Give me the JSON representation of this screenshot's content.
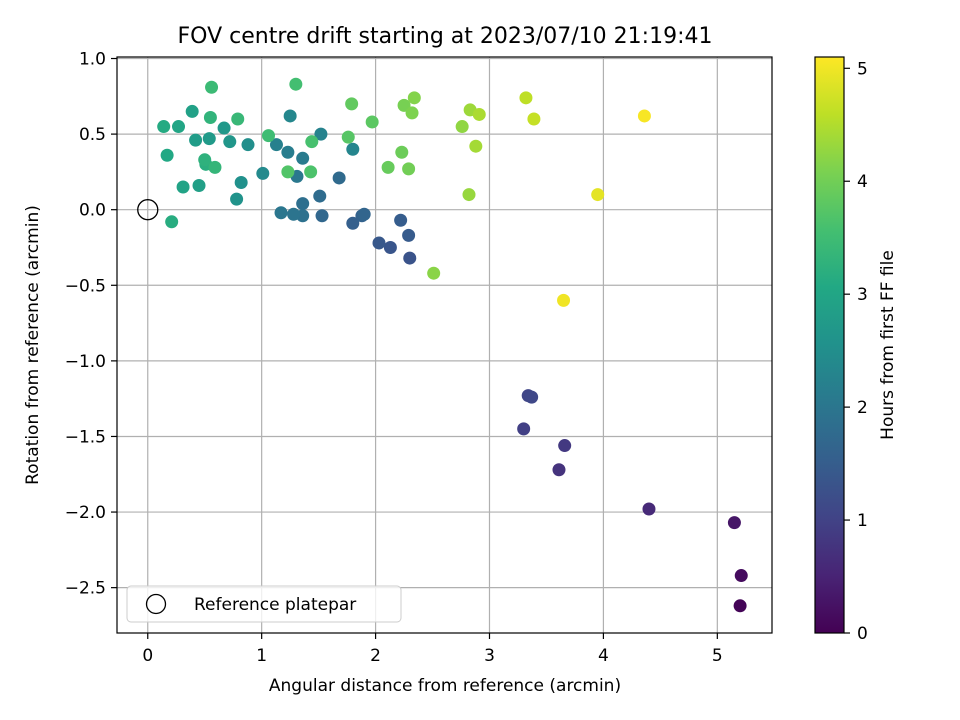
{
  "chart_data": {
    "type": "scatter",
    "title": "FOV centre drift starting at 2023/07/10 21:19:41",
    "xlabel": "Angular distance from reference (arcmin)",
    "ylabel": "Rotation from reference (arcmin)",
    "xlim": [
      -0.27,
      5.48
    ],
    "ylim": [
      -2.8,
      1.01
    ],
    "xticks": [
      0,
      1,
      2,
      3,
      4,
      5
    ],
    "xtick_labels": [
      "0",
      "1",
      "2",
      "3",
      "4",
      "5"
    ],
    "yticks": [
      1.0,
      0.5,
      0.0,
      -0.5,
      -1.0,
      -1.5,
      -2.0,
      -2.5
    ],
    "ytick_labels": [
      "1.0",
      "0.5",
      "0.0",
      "−0.5",
      "−1.0",
      "−1.5",
      "−2.0",
      "−2.5"
    ],
    "grid": true,
    "legend": {
      "position": "lower-left",
      "entries": [
        "Reference platepar"
      ]
    },
    "reference_point": {
      "x": 0,
      "y": 0
    },
    "colorbar": {
      "label": "Hours from first FF file",
      "colormap": "viridis",
      "range": [
        0,
        5.1
      ],
      "ticks": [
        0,
        1,
        2,
        3,
        4,
        5
      ],
      "tick_labels": [
        "0",
        "1",
        "2",
        "3",
        "4",
        "5"
      ]
    },
    "points": [
      {
        "x": 5.2,
        "y": -2.62,
        "c": 0.05
      },
      {
        "x": 5.21,
        "y": -2.42,
        "c": 0.15
      },
      {
        "x": 5.15,
        "y": -2.07,
        "c": 0.3
      },
      {
        "x": 4.4,
        "y": -1.98,
        "c": 0.6
      },
      {
        "x": 3.61,
        "y": -1.72,
        "c": 0.75
      },
      {
        "x": 3.66,
        "y": -1.56,
        "c": 0.85
      },
      {
        "x": 3.3,
        "y": -1.45,
        "c": 0.95
      },
      {
        "x": 3.34,
        "y": -1.23,
        "c": 1.05
      },
      {
        "x": 3.37,
        "y": -1.24,
        "c": 1.1
      },
      {
        "x": 2.3,
        "y": -0.32,
        "c": 1.3
      },
      {
        "x": 2.13,
        "y": -0.25,
        "c": 1.35
      },
      {
        "x": 2.03,
        "y": -0.22,
        "c": 1.4
      },
      {
        "x": 2.29,
        "y": -0.17,
        "c": 1.45
      },
      {
        "x": 2.22,
        "y": -0.07,
        "c": 1.5
      },
      {
        "x": 1.8,
        "y": -0.09,
        "c": 1.55
      },
      {
        "x": 1.88,
        "y": -0.04,
        "c": 1.6
      },
      {
        "x": 1.9,
        "y": -0.03,
        "c": 1.65
      },
      {
        "x": 1.53,
        "y": -0.04,
        "c": 1.7
      },
      {
        "x": 1.68,
        "y": 0.21,
        "c": 1.75
      },
      {
        "x": 1.51,
        "y": 0.09,
        "c": 1.8
      },
      {
        "x": 1.36,
        "y": 0.04,
        "c": 1.85
      },
      {
        "x": 1.36,
        "y": -0.04,
        "c": 1.9
      },
      {
        "x": 1.28,
        "y": -0.03,
        "c": 1.95
      },
      {
        "x": 1.17,
        "y": -0.02,
        "c": 2.0
      },
      {
        "x": 1.31,
        "y": 0.22,
        "c": 2.05
      },
      {
        "x": 1.36,
        "y": 0.34,
        "c": 2.1
      },
      {
        "x": 1.23,
        "y": 0.38,
        "c": 2.15
      },
      {
        "x": 1.13,
        "y": 0.43,
        "c": 2.2
      },
      {
        "x": 1.52,
        "y": 0.5,
        "c": 2.25
      },
      {
        "x": 1.8,
        "y": 0.4,
        "c": 2.3
      },
      {
        "x": 1.25,
        "y": 0.62,
        "c": 2.35
      },
      {
        "x": 1.01,
        "y": 0.24,
        "c": 2.4
      },
      {
        "x": 0.88,
        "y": 0.43,
        "c": 2.5
      },
      {
        "x": 0.82,
        "y": 0.18,
        "c": 2.55
      },
      {
        "x": 0.78,
        "y": 0.07,
        "c": 2.6
      },
      {
        "x": 0.72,
        "y": 0.45,
        "c": 2.65
      },
      {
        "x": 0.67,
        "y": 0.54,
        "c": 2.7
      },
      {
        "x": 0.54,
        "y": 0.47,
        "c": 2.75
      },
      {
        "x": 0.42,
        "y": 0.46,
        "c": 2.8
      },
      {
        "x": 0.45,
        "y": 0.16,
        "c": 2.85
      },
      {
        "x": 0.39,
        "y": 0.65,
        "c": 2.9
      },
      {
        "x": 0.31,
        "y": 0.15,
        "c": 2.95
      },
      {
        "x": 0.27,
        "y": 0.55,
        "c": 3.0
      },
      {
        "x": 0.17,
        "y": 0.36,
        "c": 3.05
      },
      {
        "x": 0.14,
        "y": 0.55,
        "c": 3.1
      },
      {
        "x": 0.21,
        "y": -0.08,
        "c": 3.15
      },
      {
        "x": 0.51,
        "y": 0.3,
        "c": 3.2
      },
      {
        "x": 0.5,
        "y": 0.33,
        "c": 3.25
      },
      {
        "x": 0.55,
        "y": 0.61,
        "c": 3.3
      },
      {
        "x": 0.59,
        "y": 0.28,
        "c": 3.35
      },
      {
        "x": 0.79,
        "y": 0.6,
        "c": 3.4
      },
      {
        "x": 0.56,
        "y": 0.81,
        "c": 3.45
      },
      {
        "x": 1.06,
        "y": 0.49,
        "c": 3.5
      },
      {
        "x": 1.3,
        "y": 0.83,
        "c": 3.55
      },
      {
        "x": 1.44,
        "y": 0.45,
        "c": 3.6
      },
      {
        "x": 1.43,
        "y": 0.25,
        "c": 3.65
      },
      {
        "x": 1.23,
        "y": 0.25,
        "c": 3.7
      },
      {
        "x": 1.76,
        "y": 0.48,
        "c": 3.75
      },
      {
        "x": 1.97,
        "y": 0.58,
        "c": 3.8
      },
      {
        "x": 1.79,
        "y": 0.7,
        "c": 3.85
      },
      {
        "x": 2.11,
        "y": 0.28,
        "c": 3.9
      },
      {
        "x": 2.23,
        "y": 0.38,
        "c": 3.95
      },
      {
        "x": 2.29,
        "y": 0.27,
        "c": 4.0
      },
      {
        "x": 2.25,
        "y": 0.69,
        "c": 4.05
      },
      {
        "x": 2.32,
        "y": 0.64,
        "c": 4.1
      },
      {
        "x": 2.34,
        "y": 0.74,
        "c": 4.15
      },
      {
        "x": 2.51,
        "y": -0.42,
        "c": 4.2
      },
      {
        "x": 2.76,
        "y": 0.55,
        "c": 4.25
      },
      {
        "x": 2.82,
        "y": 0.1,
        "c": 4.3
      },
      {
        "x": 2.83,
        "y": 0.66,
        "c": 4.35
      },
      {
        "x": 2.88,
        "y": 0.42,
        "c": 4.4
      },
      {
        "x": 2.91,
        "y": 0.63,
        "c": 4.45
      },
      {
        "x": 3.32,
        "y": 0.74,
        "c": 4.6
      },
      {
        "x": 3.39,
        "y": 0.6,
        "c": 4.65
      },
      {
        "x": 3.95,
        "y": 0.1,
        "c": 4.9
      },
      {
        "x": 3.65,
        "y": -0.6,
        "c": 5.0
      },
      {
        "x": 4.36,
        "y": 0.62,
        "c": 5.05
      }
    ]
  }
}
